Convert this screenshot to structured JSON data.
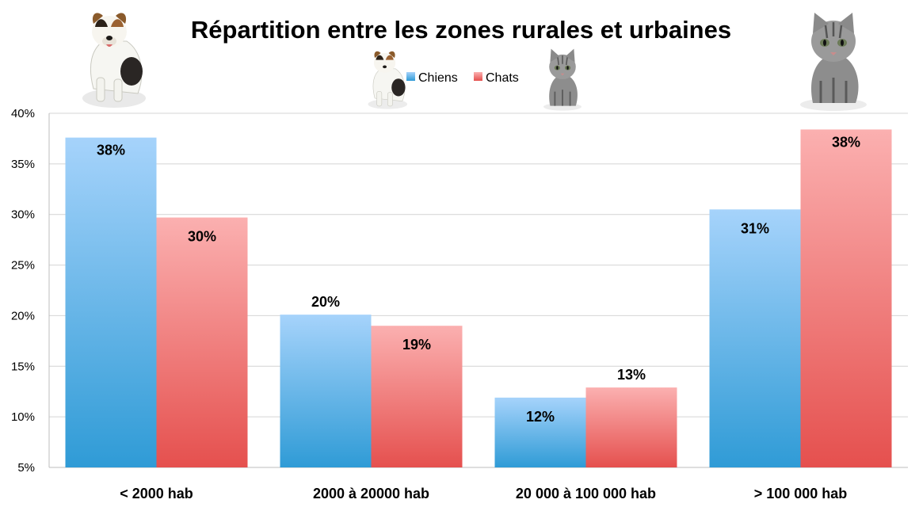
{
  "chart_data": {
    "type": "bar",
    "title": "Répartition entre les zones rurales et urbaines",
    "categories": [
      "< 2000 hab",
      "2000 à 20000 hab",
      "20 000 à 100 000 hab",
      "> 100 000 hab"
    ],
    "series": [
      {
        "name": "Chiens",
        "values": [
          37.6,
          20.1,
          11.9,
          30.5
        ],
        "labels": [
          "38%",
          "20%",
          "12%",
          "31%"
        ],
        "color_top": "#a6d3fb",
        "color_bottom": "#2f9bd6"
      },
      {
        "name": "Chats",
        "values": [
          29.7,
          19.0,
          12.9,
          38.4
        ],
        "labels": [
          "30%",
          "19%",
          "13%",
          "38%"
        ],
        "color_top": "#fbb0b0",
        "color_bottom": "#e5504e"
      }
    ],
    "yticks": [
      "5%",
      "10%",
      "15%",
      "20%",
      "25%",
      "30%",
      "35%",
      "40%"
    ],
    "ylim": [
      5,
      40
    ],
    "grid": true,
    "legend_position": "top-center",
    "decorations": [
      "dog-icon",
      "cat-icon"
    ]
  }
}
